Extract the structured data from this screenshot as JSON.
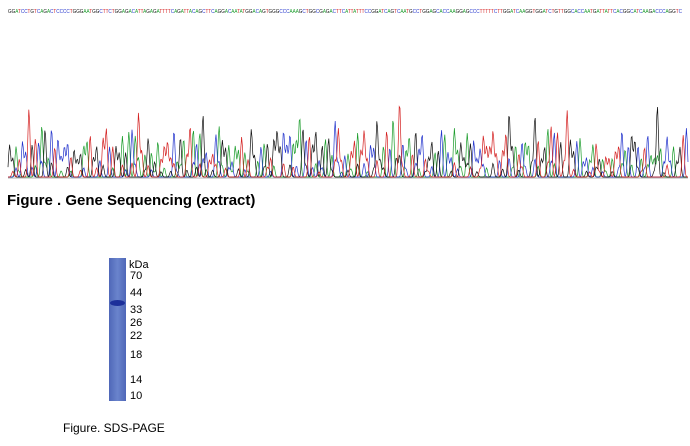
{
  "sequence": {
    "bases": "GGATCCTGTCAGACTCCCCTGGGAATGGCTTCTGGAGACATTAGAGATTTTCAGATTACAGCTTCAGGACAATATGGACAGTGGGCCCAAAGCTGGCGAGACTTCATTATTTCCGGATCAGTCAATGCCTGGAGCACCAAGGAGCCCTTTTTCTTGGATCAAGGTGGATCTGTTGGCACCAATGATTATTCACGGCATCAAGACCCAGGTC"
  },
  "figure1": {
    "caption": "Figure . Gene Sequencing (extract)"
  },
  "gel": {
    "unit": "kDa",
    "markers": [
      70,
      44,
      33,
      26,
      22,
      18,
      14,
      10
    ]
  },
  "figure2": {
    "caption": "Figure. SDS-PAGE"
  }
}
